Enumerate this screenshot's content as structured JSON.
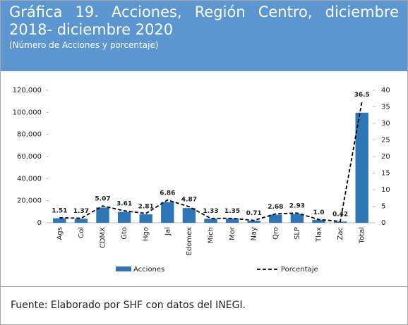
{
  "header": {
    "title": "Gráfica 19. Acciones, Región Centro, diciembre 2018- diciembre 2020",
    "subtitle": "(Número de Acciones y porcentaje)"
  },
  "chart_data": {
    "type": "bar",
    "categories": [
      "Ags",
      "Col",
      "CDMX",
      "Gto",
      "Hgo",
      "Jal",
      "Edomex",
      "Mich",
      "Mor",
      "Nay",
      "Qro",
      "SLP",
      "Tlax",
      "Zac",
      "Total"
    ],
    "series": [
      {
        "name": "Acciones",
        "color": "#2e75b6",
        "values": [
          4100,
          3700,
          13800,
          9900,
          7700,
          18700,
          13300,
          3600,
          3700,
          1900,
          7300,
          8000,
          2700,
          1100,
          99700
        ]
      },
      {
        "name": "Porcentaje",
        "color": "#000000",
        "axis": "y2",
        "values": [
          1.51,
          1.37,
          5.07,
          3.61,
          2.81,
          6.86,
          4.87,
          1.33,
          1.35,
          0.71,
          2.68,
          2.93,
          1.0,
          0.42,
          36.5
        ],
        "value_labels": [
          "1.51",
          "1.37",
          "5.07",
          "3.61",
          "2.81",
          "6.86",
          "4.87",
          "1.33",
          "1.35",
          "0.71",
          "2.68",
          "2.93",
          "1.0",
          "0.42",
          "36.5"
        ]
      }
    ],
    "ylim": [
      0,
      120000
    ],
    "yticks": [
      0,
      {
        "value": 20000,
        "label": "20,000"
      },
      {
        "value": 40000,
        "label": "40,000"
      },
      {
        "value": 60000,
        "label": "60,000"
      },
      {
        "value": 80000,
        "label": "80,000"
      },
      {
        "value": 100000,
        "label": "100,000"
      },
      {
        "value": 120000,
        "label": "120,000"
      }
    ],
    "y2lim": [
      0,
      40
    ],
    "y2ticks": [
      0,
      5,
      10,
      15,
      20,
      25,
      30,
      35,
      40
    ],
    "legend": "bottom"
  },
  "footer": "Fuente: Elaborado por SHF con datos del INEGI."
}
